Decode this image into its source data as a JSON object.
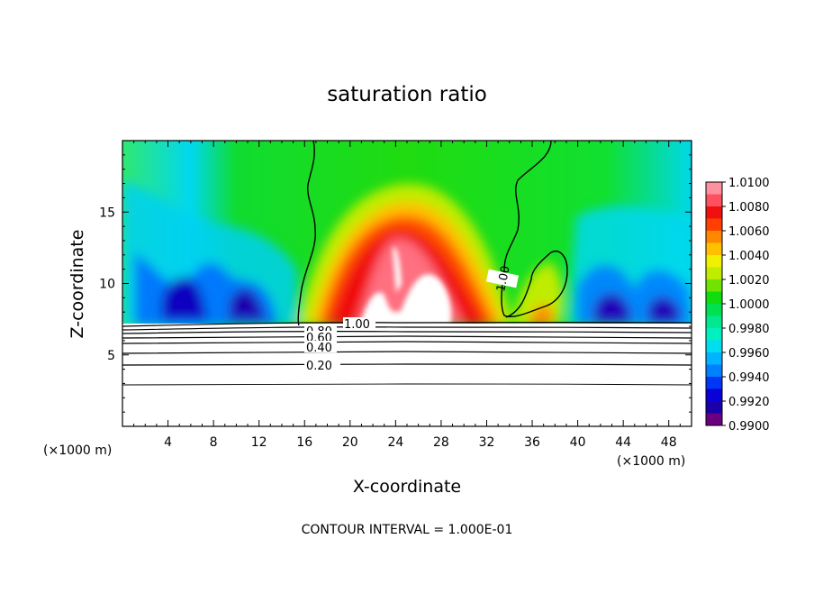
{
  "chart_data": {
    "type": "heatmap",
    "title": "saturation ratio",
    "xlabel": "X-coordinate",
    "ylabel": "Z-coordinate",
    "x_unit": "(×1000 m)",
    "x_unit_right": "(×1000 m)",
    "xlim": [
      0,
      50
    ],
    "ylim": [
      0,
      20
    ],
    "x_ticks": [
      "4",
      "8",
      "12",
      "16",
      "20",
      "24",
      "28",
      "32",
      "36",
      "40",
      "44",
      "48"
    ],
    "x_tick_values": [
      4,
      8,
      12,
      16,
      20,
      24,
      28,
      32,
      36,
      40,
      44,
      48
    ],
    "y_ticks": [
      "5",
      "10",
      "15"
    ],
    "y_tick_values": [
      5,
      10,
      15
    ],
    "footnote": "CONTOUR INTERVAL = 1.000E-01",
    "colorbar": {
      "levels": [
        0.99,
        0.991,
        0.992,
        0.993,
        0.994,
        0.995,
        0.996,
        0.997,
        0.998,
        0.999,
        1.0,
        1.001,
        1.002,
        1.003,
        1.004,
        1.005,
        1.006,
        1.007,
        1.008,
        1.009,
        1.01
      ],
      "labels": [
        "0.9900",
        "0.9920",
        "0.9940",
        "0.9960",
        "0.9980",
        "1.0000",
        "1.0020",
        "1.0040",
        "1.0060",
        "1.0080",
        "1.0100"
      ],
      "label_values": [
        0.99,
        0.992,
        0.994,
        0.996,
        0.998,
        1.0,
        1.002,
        1.004,
        1.006,
        1.008,
        1.01
      ],
      "colors": [
        "#6a0080",
        "#1a00a8",
        "#0a00d8",
        "#0036f5",
        "#0080ff",
        "#00b4ff",
        "#00dcf0",
        "#00f0c0",
        "#00e890",
        "#00e050",
        "#10dc10",
        "#70e400",
        "#c0ec00",
        "#f0f000",
        "#ffc000",
        "#ff8800",
        "#ff4000",
        "#f01010",
        "#ff5060",
        "#ff90a0"
      ]
    },
    "contour_labels": [
      "1.00",
      "1.00",
      "0.80",
      "0.60",
      "0.40",
      "0.20"
    ],
    "contour_levels": [
      1.0,
      1.0,
      0.8,
      0.6,
      0.4,
      0.2
    ]
  }
}
